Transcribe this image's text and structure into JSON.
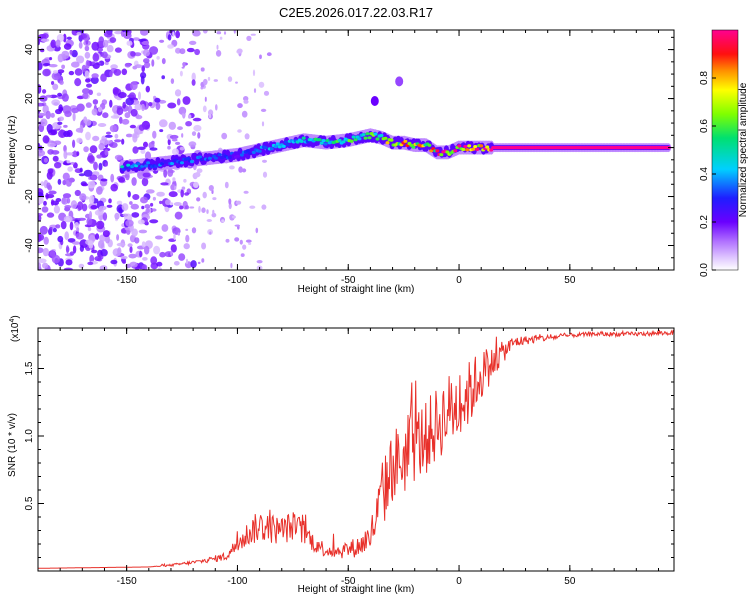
{
  "chart_data": [
    {
      "type": "heatmap",
      "title": "C2E5.2026.017.22.03.R17",
      "xlabel": "Height of straight line (km)",
      "ylabel": "Frequency (Hz)",
      "xlim": [
        -190,
        97
      ],
      "ylim": [
        -50,
        48
      ],
      "xticks": [
        "-150",
        "-100",
        "-50",
        "0",
        "50"
      ],
      "yticks": [
        "-40",
        "-20",
        "0",
        "20",
        "40"
      ],
      "colorbar": {
        "label": "Normalized spectral amplitude",
        "range": [
          0,
          1
        ],
        "ticks": [
          "0.0",
          "0.2",
          "0.4",
          "0.6",
          "0.8"
        ]
      },
      "ridge": {
        "height_km": [
          -150,
          -140,
          -120,
          -100,
          -90,
          -80,
          -70,
          -60,
          -50,
          -45,
          -40,
          -35,
          -30,
          -25,
          -20,
          -15,
          -10,
          -5,
          0,
          5,
          10,
          15,
          50,
          97
        ],
        "frequency_hz": [
          -8,
          -7,
          -5,
          -3,
          -1,
          1,
          3,
          2,
          3,
          4,
          5,
          4,
          2,
          2,
          1,
          1,
          -2,
          -2,
          0,
          0,
          0,
          0,
          0,
          0
        ],
        "amplitude": [
          0.45,
          0.4,
          0.35,
          0.3,
          0.4,
          0.45,
          0.5,
          0.55,
          0.6,
          0.6,
          0.65,
          0.7,
          0.8,
          0.9,
          0.85,
          0.8,
          0.9,
          0.95,
          0.95,
          1.0,
          1.0,
          1.0,
          1.0,
          1.0
        ]
      },
      "blobs": [
        {
          "height_km": -38,
          "frequency_hz": 19,
          "amplitude": 0.2
        },
        {
          "height_km": -27,
          "frequency_hz": 27,
          "amplitude": 0.15
        }
      ]
    },
    {
      "type": "line",
      "xlabel": "Height of straight line (km)",
      "ylabel": "SNR (10 * v/v)",
      "y_multiplier": "(x10",
      "y_multiplier_exp": "4",
      "xlim": [
        -190,
        97
      ],
      "ylim": [
        0,
        1.8
      ],
      "xticks": [
        "-150",
        "-100",
        "-50",
        "0",
        "50"
      ],
      "yticks": [
        "0.5",
        "1.0",
        "1.5"
      ],
      "series": [
        {
          "name": "SNR",
          "color": "#e8302a",
          "x": [
            -190,
            -140,
            -130,
            -115,
            -105,
            -100,
            -95,
            -90,
            -85,
            -80,
            -75,
            -70,
            -65,
            -60,
            -55,
            -50,
            -45,
            -40,
            -35,
            -30,
            -25,
            -20,
            -15,
            -10,
            -5,
            0,
            5,
            10,
            15,
            20,
            25,
            30,
            40,
            50,
            60,
            70,
            80,
            97
          ],
          "y": [
            0.02,
            0.03,
            0.04,
            0.07,
            0.1,
            0.18,
            0.25,
            0.3,
            0.28,
            0.27,
            0.3,
            0.26,
            0.18,
            0.14,
            0.13,
            0.14,
            0.16,
            0.22,
            0.45,
            0.7,
            0.75,
            0.85,
            0.9,
            1.0,
            1.1,
            1.15,
            1.25,
            1.4,
            1.5,
            1.6,
            1.68,
            1.7,
            1.72,
            1.74,
            1.75,
            1.75,
            1.75,
            1.76
          ],
          "noise": [
            0.0,
            0.0,
            0.01,
            0.02,
            0.04,
            0.08,
            0.12,
            0.15,
            0.14,
            0.13,
            0.14,
            0.12,
            0.08,
            0.07,
            0.07,
            0.08,
            0.1,
            0.15,
            0.3,
            0.35,
            0.35,
            0.35,
            0.35,
            0.35,
            0.35,
            0.35,
            0.3,
            0.25,
            0.15,
            0.1,
            0.06,
            0.04,
            0.03,
            0.02,
            0.02,
            0.02,
            0.02,
            0.02
          ]
        }
      ]
    }
  ]
}
